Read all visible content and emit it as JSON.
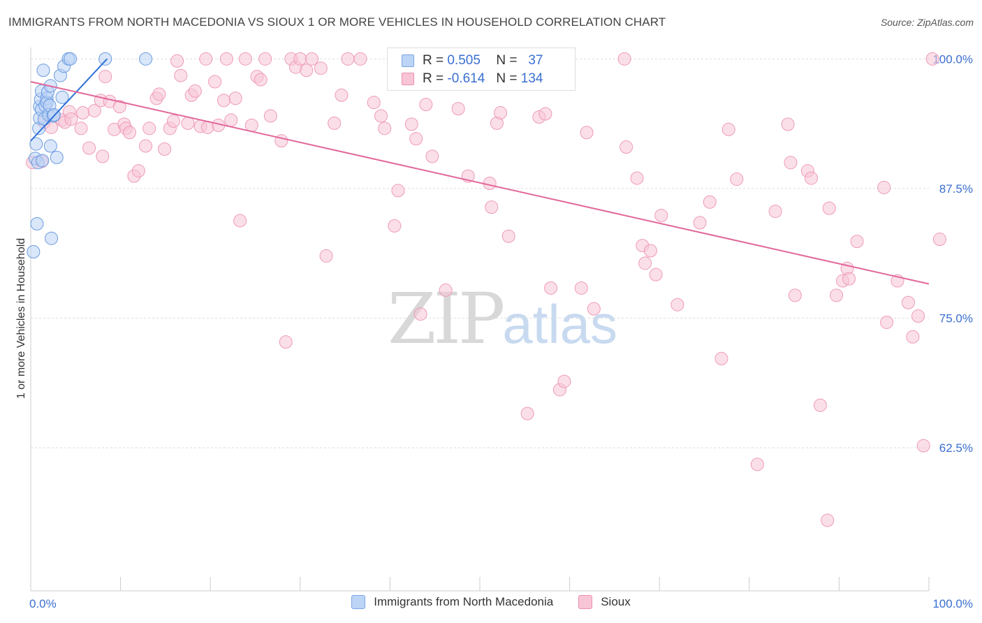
{
  "title": "IMMIGRANTS FROM NORTH MACEDONIA VS SIOUX 1 OR MORE VEHICLES IN HOUSEHOLD CORRELATION CHART",
  "source": "Source: ZipAtlas.com",
  "watermark": {
    "zip": "ZIP",
    "atlas": "atlas"
  },
  "stats": {
    "rows": [
      {
        "r_label": "R =",
        "r_value": "0.505",
        "n_label": "N =",
        "n_value": "37"
      },
      {
        "r_label": "R =",
        "r_value": "-0.614",
        "n_label": "N =",
        "n_value": "134"
      }
    ]
  },
  "legend": [
    {
      "label": "Immigrants from North Macedonia"
    },
    {
      "label": "Sioux"
    }
  ],
  "colors": {
    "blue_fill": "#bcd4f6",
    "blue_stroke": "#6a9be0",
    "blue_line": "#2d6fd6",
    "pink_fill": "#f8c5d6",
    "pink_stroke": "#ee9ab8",
    "pink_line": "#e2679a",
    "tick_text": "#3a6fd1",
    "grid": "#dddddd"
  },
  "chart_data": {
    "type": "scatter",
    "title": "IMMIGRANTS FROM NORTH MACEDONIA VS SIOUX 1 OR MORE VEHICLES IN HOUSEHOLD CORRELATION CHART",
    "xlabel": "",
    "ylabel": "1 or more Vehicles in Household",
    "xlim": [
      0,
      100
    ],
    "ylim": [
      48.7,
      101.1
    ],
    "x_tick_labels": [
      "0.0%",
      "100.0%"
    ],
    "y_ticks": [
      {
        "value": 62.5,
        "label": "62.5%"
      },
      {
        "value": 75.0,
        "label": "75.0%"
      },
      {
        "value": 87.5,
        "label": "87.5%"
      },
      {
        "value": 100.0,
        "label": "100.0%"
      }
    ],
    "grid": true,
    "series": [
      {
        "name": "Immigrants from North Macedonia",
        "color": "blue",
        "trend": {
          "x": [
            0.0,
            8.5
          ],
          "y": [
            92.1,
            100.0
          ]
        },
        "points": [
          [
            0.3,
            81.4
          ],
          [
            0.5,
            90.4
          ],
          [
            0.6,
            91.8
          ],
          [
            0.7,
            84.1
          ],
          [
            0.8,
            90.0
          ],
          [
            0.9,
            93.3
          ],
          [
            1.0,
            94.3
          ],
          [
            1.0,
            95.4
          ],
          [
            1.1,
            96.1
          ],
          [
            1.2,
            96.9
          ],
          [
            1.2,
            95.1
          ],
          [
            1.3,
            90.2
          ],
          [
            1.4,
            98.9
          ],
          [
            1.5,
            94.2
          ],
          [
            1.6,
            95.5
          ],
          [
            1.8,
            96.2
          ],
          [
            1.8,
            95.8
          ],
          [
            1.9,
            96.8
          ],
          [
            2.0,
            94.6
          ],
          [
            2.1,
            95.5
          ],
          [
            2.2,
            91.6
          ],
          [
            2.2,
            97.4
          ],
          [
            2.3,
            82.7
          ],
          [
            2.5,
            94.5
          ],
          [
            2.6,
            94.6
          ],
          [
            2.9,
            90.5
          ],
          [
            3.3,
            98.4
          ],
          [
            3.5,
            96.3
          ],
          [
            3.7,
            99.3
          ],
          [
            4.2,
            100.0
          ],
          [
            4.4,
            100.0
          ],
          [
            8.3,
            100.0
          ],
          [
            12.8,
            100.0
          ]
        ]
      },
      {
        "name": "Sioux",
        "color": "pink",
        "trend": {
          "x": [
            0.0,
            100.0
          ],
          "y": [
            97.8,
            78.3
          ]
        },
        "points": [
          [
            0.2,
            90.0
          ],
          [
            1.2,
            90.1
          ],
          [
            1.5,
            93.9
          ],
          [
            2.3,
            93.4
          ],
          [
            3.5,
            94.1
          ],
          [
            3.8,
            93.9
          ],
          [
            4.3,
            94.9
          ],
          [
            4.5,
            94.2
          ],
          [
            5.6,
            93.3
          ],
          [
            5.8,
            94.8
          ],
          [
            6.5,
            91.4
          ],
          [
            7.1,
            95.0
          ],
          [
            7.8,
            96.0
          ],
          [
            8.0,
            90.6
          ],
          [
            8.3,
            98.3
          ],
          [
            8.8,
            95.9
          ],
          [
            9.3,
            93.2
          ],
          [
            9.9,
            95.4
          ],
          [
            10.4,
            93.7
          ],
          [
            10.6,
            93.3
          ],
          [
            11.0,
            92.9
          ],
          [
            11.5,
            88.7
          ],
          [
            12.0,
            89.2
          ],
          [
            12.8,
            91.6
          ],
          [
            13.2,
            93.3
          ],
          [
            14.0,
            96.2
          ],
          [
            14.3,
            96.6
          ],
          [
            14.9,
            91.3
          ],
          [
            15.5,
            93.3
          ],
          [
            15.9,
            94.0
          ],
          [
            16.3,
            99.8
          ],
          [
            16.7,
            98.4
          ],
          [
            17.5,
            93.8
          ],
          [
            17.9,
            96.5
          ],
          [
            18.3,
            96.9
          ],
          [
            18.9,
            93.5
          ],
          [
            19.5,
            100.0
          ],
          [
            19.7,
            93.4
          ],
          [
            20.5,
            97.8
          ],
          [
            20.9,
            93.6
          ],
          [
            21.5,
            96.0
          ],
          [
            21.8,
            100.0
          ],
          [
            22.3,
            94.1
          ],
          [
            22.8,
            96.2
          ],
          [
            23.3,
            84.4
          ],
          [
            23.9,
            100.0
          ],
          [
            24.6,
            93.6
          ],
          [
            25.2,
            98.3
          ],
          [
            25.6,
            98.0
          ],
          [
            26.1,
            100.0
          ],
          [
            26.7,
            94.5
          ],
          [
            27.9,
            92.1
          ],
          [
            28.4,
            72.7
          ],
          [
            29.0,
            100.0
          ],
          [
            29.5,
            99.2
          ],
          [
            30.0,
            100.0
          ],
          [
            30.7,
            98.9
          ],
          [
            31.3,
            100.0
          ],
          [
            32.3,
            99.1
          ],
          [
            32.9,
            81.0
          ],
          [
            33.8,
            93.8
          ],
          [
            34.6,
            96.5
          ],
          [
            35.3,
            100.0
          ],
          [
            36.7,
            100.0
          ],
          [
            38.2,
            95.8
          ],
          [
            39.0,
            94.5
          ],
          [
            39.4,
            93.3
          ],
          [
            40.5,
            83.9
          ],
          [
            40.9,
            87.3
          ],
          [
            42.4,
            93.7
          ],
          [
            42.9,
            92.3
          ],
          [
            43.4,
            75.4
          ],
          [
            44.0,
            95.6
          ],
          [
            44.7,
            90.6
          ],
          [
            46.2,
            77.7
          ],
          [
            47.6,
            95.2
          ],
          [
            48.7,
            88.7
          ],
          [
            51.1,
            88.0
          ],
          [
            51.3,
            85.7
          ],
          [
            51.9,
            93.8
          ],
          [
            52.3,
            94.8
          ],
          [
            53.2,
            82.9
          ],
          [
            55.3,
            65.8
          ],
          [
            56.6,
            94.4
          ],
          [
            57.3,
            94.7
          ],
          [
            57.9,
            77.9
          ],
          [
            58.9,
            68.1
          ],
          [
            59.4,
            68.9
          ],
          [
            61.3,
            77.9
          ],
          [
            61.9,
            92.9
          ],
          [
            62.7,
            75.9
          ],
          [
            66.1,
            100.0
          ],
          [
            66.3,
            91.5
          ],
          [
            67.5,
            88.5
          ],
          [
            68.1,
            82.0
          ],
          [
            68.4,
            80.3
          ],
          [
            69.0,
            81.5
          ],
          [
            69.6,
            79.2
          ],
          [
            70.2,
            84.9
          ],
          [
            72.0,
            76.3
          ],
          [
            74.5,
            84.2
          ],
          [
            75.6,
            86.2
          ],
          [
            76.9,
            71.1
          ],
          [
            77.7,
            93.2
          ],
          [
            78.6,
            88.4
          ],
          [
            80.9,
            60.9
          ],
          [
            82.9,
            85.3
          ],
          [
            84.3,
            93.7
          ],
          [
            84.6,
            90.0
          ],
          [
            85.1,
            77.2
          ],
          [
            86.5,
            89.2
          ],
          [
            86.9,
            88.5
          ],
          [
            87.9,
            66.6
          ],
          [
            88.7,
            55.5
          ],
          [
            88.9,
            85.6
          ],
          [
            89.7,
            77.2
          ],
          [
            90.4,
            78.6
          ],
          [
            90.9,
            79.8
          ],
          [
            91.1,
            78.8
          ],
          [
            92.0,
            82.4
          ],
          [
            95.0,
            87.6
          ],
          [
            95.3,
            74.6
          ],
          [
            96.5,
            78.6
          ],
          [
            97.7,
            76.5
          ],
          [
            98.2,
            73.2
          ],
          [
            98.8,
            75.2
          ],
          [
            99.4,
            62.7
          ],
          [
            100.4,
            100.0
          ],
          [
            101.2,
            82.6
          ]
        ]
      }
    ]
  }
}
